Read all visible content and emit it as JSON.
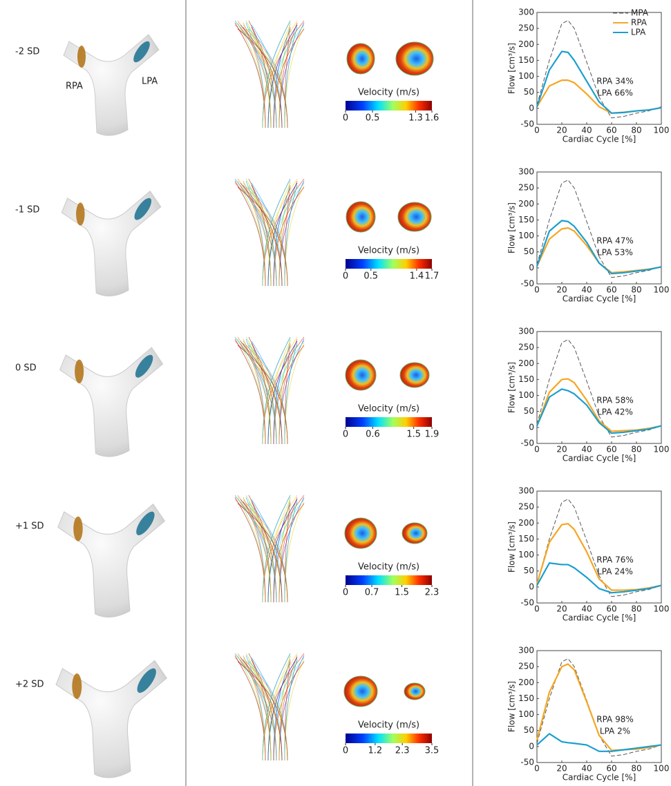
{
  "rows": [
    {
      "label": "-2 SD",
      "model_labels": [
        "RPA",
        "LPA"
      ],
      "colorbar": {
        "title": "Velocity (m/s)",
        "ticks": [
          0,
          0.5,
          1.3,
          1.6
        ]
      }
    },
    {
      "label": "-1 SD",
      "colorbar": {
        "title": "Velocity (m/s)",
        "ticks": [
          0,
          0.5,
          1.4,
          1.7
        ]
      }
    },
    {
      "label": "0 SD",
      "colorbar": {
        "title": "Velocity (m/s)",
        "ticks": [
          0,
          0.6,
          1.5,
          1.9
        ]
      }
    },
    {
      "label": "+1 SD",
      "colorbar": {
        "title": "Velocity (m/s)",
        "ticks": [
          0,
          0.7,
          1.5,
          2.3
        ]
      }
    },
    {
      "label": "+2 SD",
      "colorbar": {
        "title": "Velocity (m/s)",
        "ticks": [
          0,
          1.2,
          2.3,
          3.5
        ]
      }
    }
  ],
  "chart_data": [
    {
      "type": "line",
      "x_label": "Cardiac Cycle [%]",
      "y_label": "Flow [cm³/s]",
      "x": [
        0,
        10,
        20,
        25,
        30,
        40,
        50,
        60,
        70,
        80,
        90,
        100
      ],
      "xlim": [
        0,
        100
      ],
      "xticks": [
        0,
        20,
        40,
        60,
        80,
        100
      ],
      "ylim": [
        -50,
        300
      ],
      "yticks": [
        -50,
        0,
        50,
        100,
        150,
        200,
        250,
        300
      ],
      "legend": "upper right",
      "series": [
        {
          "name": "MPA",
          "color": "#555555",
          "dashed": true,
          "values": [
            10,
            150,
            265,
            275,
            250,
            145,
            35,
            -30,
            -25,
            -15,
            -8,
            5
          ]
        },
        {
          "name": "RPA",
          "color": "#f5a623",
          "values": [
            5,
            70,
            88,
            88,
            80,
            45,
            5,
            -15,
            -12,
            -8,
            -5,
            2
          ]
        },
        {
          "name": "LPA",
          "color": "#1b9ecf",
          "values": [
            5,
            120,
            178,
            175,
            150,
            85,
            20,
            -15,
            -13,
            -8,
            -5,
            2
          ]
        }
      ],
      "annotations": [
        {
          "text": "RPA  34%",
          "color": "#f5a623"
        },
        {
          "text": "LPA  66%",
          "color": "#1b9ecf"
        }
      ]
    },
    {
      "type": "line",
      "x_label": "Cardiac Cycle [%]",
      "y_label": "Flow [cm³/s]",
      "x": [
        0,
        10,
        20,
        25,
        30,
        40,
        50,
        60,
        70,
        80,
        90,
        100
      ],
      "xlim": [
        0,
        100
      ],
      "xticks": [
        0,
        20,
        40,
        60,
        80,
        100
      ],
      "ylim": [
        -50,
        300
      ],
      "yticks": [
        -50,
        0,
        50,
        100,
        150,
        200,
        250,
        300
      ],
      "series": [
        {
          "color": "#555555",
          "dashed": true,
          "values": [
            10,
            150,
            265,
            275,
            250,
            145,
            35,
            -30,
            -25,
            -15,
            -8,
            5
          ]
        },
        {
          "color": "#f5a623",
          "values": [
            5,
            90,
            122,
            125,
            115,
            70,
            15,
            -15,
            -12,
            -8,
            -4,
            3
          ]
        },
        {
          "color": "#1b9ecf",
          "values": [
            5,
            115,
            148,
            145,
            130,
            80,
            15,
            -18,
            -15,
            -10,
            -5,
            3
          ]
        }
      ],
      "annotations": [
        {
          "text": "RPA  47%",
          "color": "#f5a623"
        },
        {
          "text": "LPA  53%",
          "color": "#1b9ecf"
        }
      ]
    },
    {
      "type": "line",
      "x_label": "Cardiac Cycle [%]",
      "y_label": "Flow [cm³/s]",
      "x": [
        0,
        10,
        20,
        25,
        30,
        40,
        50,
        60,
        70,
        80,
        90,
        100
      ],
      "xlim": [
        0,
        100
      ],
      "xticks": [
        0,
        20,
        40,
        60,
        80,
        100
      ],
      "ylim": [
        -50,
        300
      ],
      "yticks": [
        -50,
        0,
        50,
        100,
        150,
        200,
        250,
        300
      ],
      "series": [
        {
          "color": "#555555",
          "dashed": true,
          "values": [
            10,
            150,
            265,
            275,
            250,
            145,
            35,
            -30,
            -25,
            -15,
            -8,
            5
          ]
        },
        {
          "color": "#f5a623",
          "values": [
            5,
            110,
            150,
            152,
            140,
            85,
            20,
            -12,
            -10,
            -8,
            -3,
            5
          ]
        },
        {
          "color": "#1b9ecf",
          "values": [
            5,
            95,
            120,
            115,
            105,
            70,
            15,
            -18,
            -15,
            -10,
            -5,
            5
          ]
        }
      ],
      "annotations": [
        {
          "text": "RPA  58%",
          "color": "#f5a623"
        },
        {
          "text": "LPA  42%",
          "color": "#1b9ecf"
        }
      ]
    },
    {
      "type": "line",
      "x_label": "Cardiac Cycle [%]",
      "y_label": "Flow [cm³/s]",
      "x": [
        0,
        10,
        20,
        25,
        30,
        40,
        50,
        60,
        70,
        80,
        90,
        100
      ],
      "xlim": [
        0,
        100
      ],
      "xticks": [
        0,
        20,
        40,
        60,
        80,
        100
      ],
      "ylim": [
        -50,
        300
      ],
      "yticks": [
        -50,
        0,
        50,
        100,
        150,
        200,
        250,
        300
      ],
      "series": [
        {
          "color": "#555555",
          "dashed": true,
          "values": [
            10,
            150,
            265,
            275,
            250,
            145,
            35,
            -30,
            -25,
            -15,
            -8,
            5
          ]
        },
        {
          "color": "#f5a623",
          "values": [
            10,
            140,
            195,
            198,
            180,
            110,
            25,
            -10,
            -10,
            -8,
            -3,
            5
          ]
        },
        {
          "color": "#1b9ecf",
          "values": [
            5,
            75,
            70,
            70,
            60,
            30,
            -5,
            -18,
            -15,
            -10,
            -5,
            5
          ]
        }
      ],
      "annotations": [
        {
          "text": "RPA  76%",
          "color": "#f5a623"
        },
        {
          "text": "LPA  24%",
          "color": "#1b9ecf"
        }
      ]
    },
    {
      "type": "line",
      "x_label": "Cardiac Cycle [%]",
      "y_label": "Flow [cm³/s]",
      "x": [
        0,
        10,
        20,
        25,
        30,
        40,
        50,
        60,
        70,
        80,
        90,
        100
      ],
      "xlim": [
        0,
        100
      ],
      "xticks": [
        0,
        20,
        40,
        60,
        80,
        100
      ],
      "ylim": [
        -50,
        300
      ],
      "yticks": [
        -50,
        0,
        50,
        100,
        150,
        200,
        250,
        300
      ],
      "series": [
        {
          "color": "#555555",
          "dashed": true,
          "values": [
            10,
            150,
            265,
            275,
            250,
            145,
            35,
            -30,
            -25,
            -15,
            -8,
            5
          ]
        },
        {
          "color": "#f5a623",
          "values": [
            20,
            170,
            250,
            258,
            240,
            140,
            35,
            -12,
            -10,
            -8,
            -3,
            5
          ]
        },
        {
          "color": "#1b9ecf",
          "values": [
            5,
            40,
            15,
            12,
            10,
            5,
            -15,
            -15,
            -10,
            -5,
            0,
            5
          ]
        }
      ],
      "annotations": [
        {
          "text": "RPA  98%",
          "color": "#f5a623"
        },
        {
          "text": "LPA  2%",
          "color": "#1b9ecf"
        }
      ]
    }
  ]
}
